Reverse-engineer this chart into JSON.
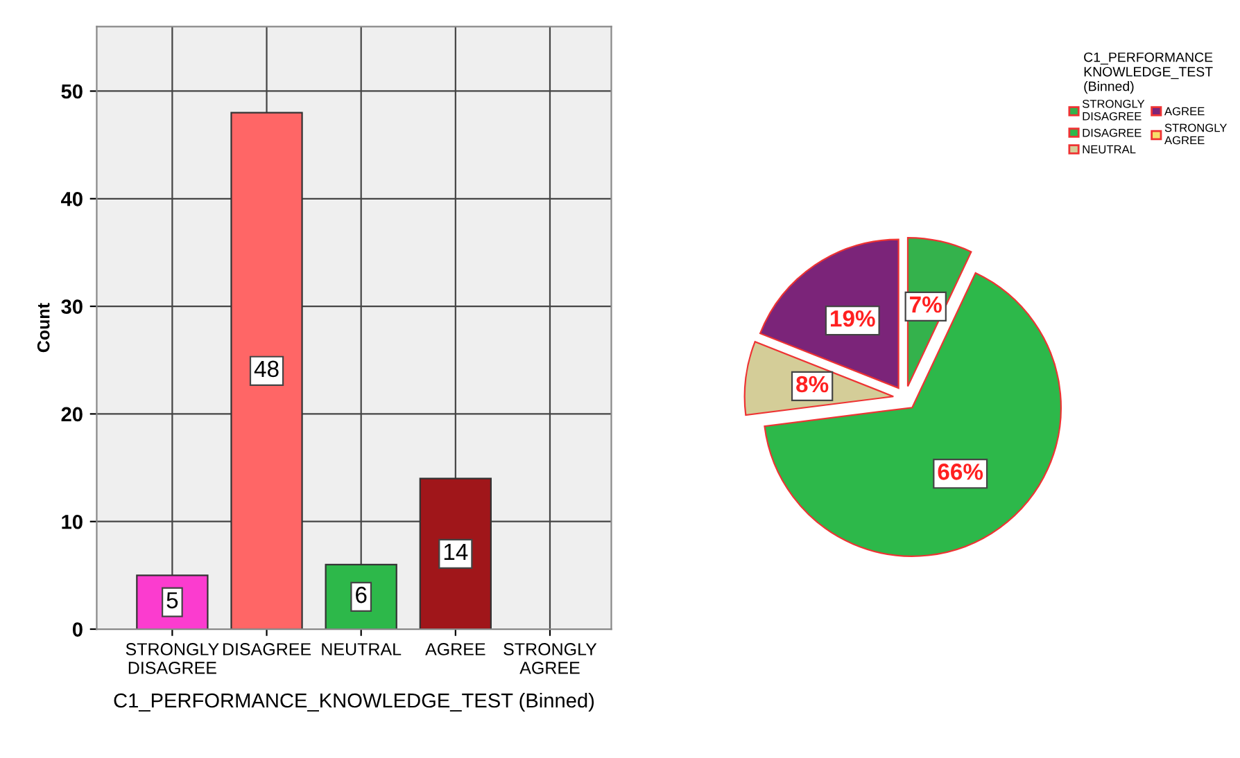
{
  "chart_data": [
    {
      "type": "bar",
      "xlabel": "C1_PERFORMANCE_KNOWLEDGE_TEST (Binned)",
      "ylabel": "Count",
      "categories": [
        "STRONGLY\nDISAGREE",
        "DISAGREE",
        "NEUTRAL",
        "AGREE",
        "STRONGLY\nAGREE"
      ],
      "values": [
        5,
        48,
        6,
        14,
        null
      ],
      "colors": [
        "#fb3ccf",
        "#ff6666",
        "#2db84a",
        "#a0161a",
        "#f7e06b"
      ],
      "value_labels": [
        "5",
        "48",
        "6",
        "14",
        null
      ],
      "ylim": [
        0,
        56
      ],
      "yticks": [
        0,
        10,
        20,
        30,
        40,
        50
      ],
      "grid": true
    },
    {
      "type": "pie",
      "legend_title": "C1_PERFORMANCE\nKNOWLEDGE_TEST\n(Binned)",
      "categories": [
        "STRONGLY\nDISAGREE",
        "DISAGREE",
        "NEUTRAL",
        "AGREE",
        "STRONGLY\nAGREE"
      ],
      "values": [
        7,
        66,
        8,
        19,
        null
      ],
      "colors": [
        "#34b24c",
        "#2db84a",
        "#d4cd98",
        "#7b2479",
        "#f7e06b"
      ],
      "value_labels": [
        "7%",
        "66%",
        "8%",
        "19%",
        null
      ],
      "legend": "top right"
    }
  ]
}
